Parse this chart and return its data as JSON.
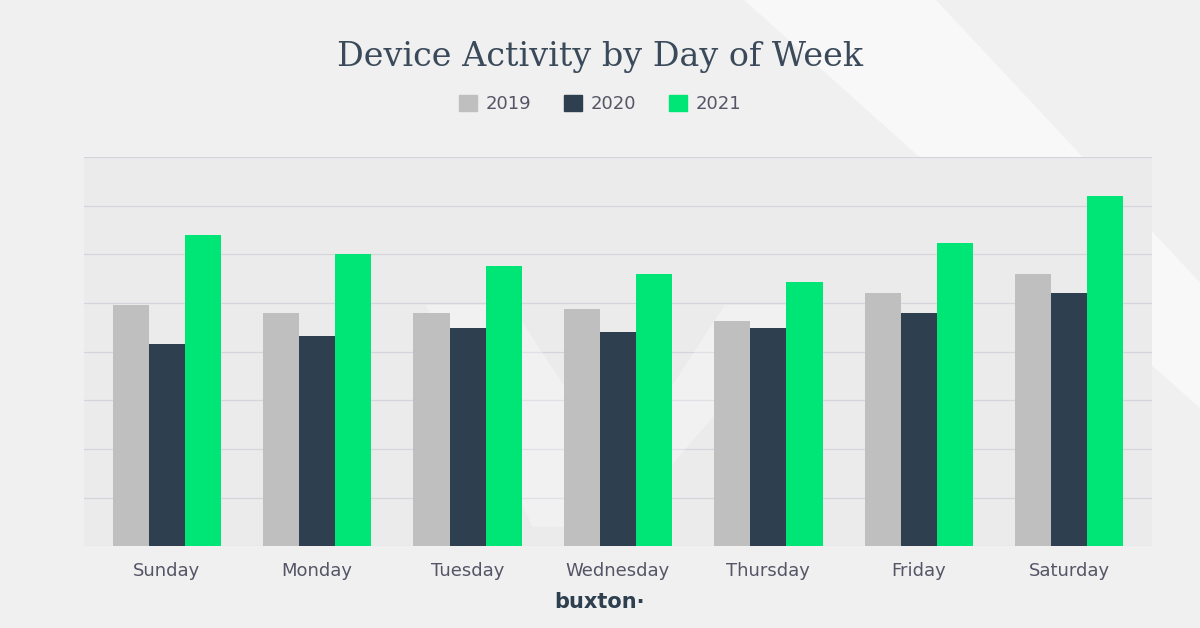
{
  "title": "Device Activity by Day of Week",
  "days": [
    "Sunday",
    "Monday",
    "Tuesday",
    "Wednesday",
    "Thursday",
    "Friday",
    "Saturday"
  ],
  "years": [
    "2019",
    "2020",
    "2021"
  ],
  "values": {
    "2019": [
      62,
      60,
      60,
      61,
      58,
      65,
      70
    ],
    "2020": [
      52,
      54,
      56,
      55,
      56,
      60,
      65
    ],
    "2021": [
      80,
      75,
      72,
      70,
      68,
      78,
      90
    ]
  },
  "colors": {
    "2019": "#c0bfbf",
    "2020": "#2e3f50",
    "2021": "#00e676"
  },
  "background_color": "#f0f0f0",
  "plot_bg_color": "#ebebeb",
  "grid_color": "#d4d4dc",
  "title_fontsize": 24,
  "legend_fontsize": 13,
  "tick_fontsize": 13,
  "bar_width": 0.24,
  "ylim": [
    0,
    100
  ],
  "buxton_label": "buxton·",
  "buxton_fontsize": 15
}
